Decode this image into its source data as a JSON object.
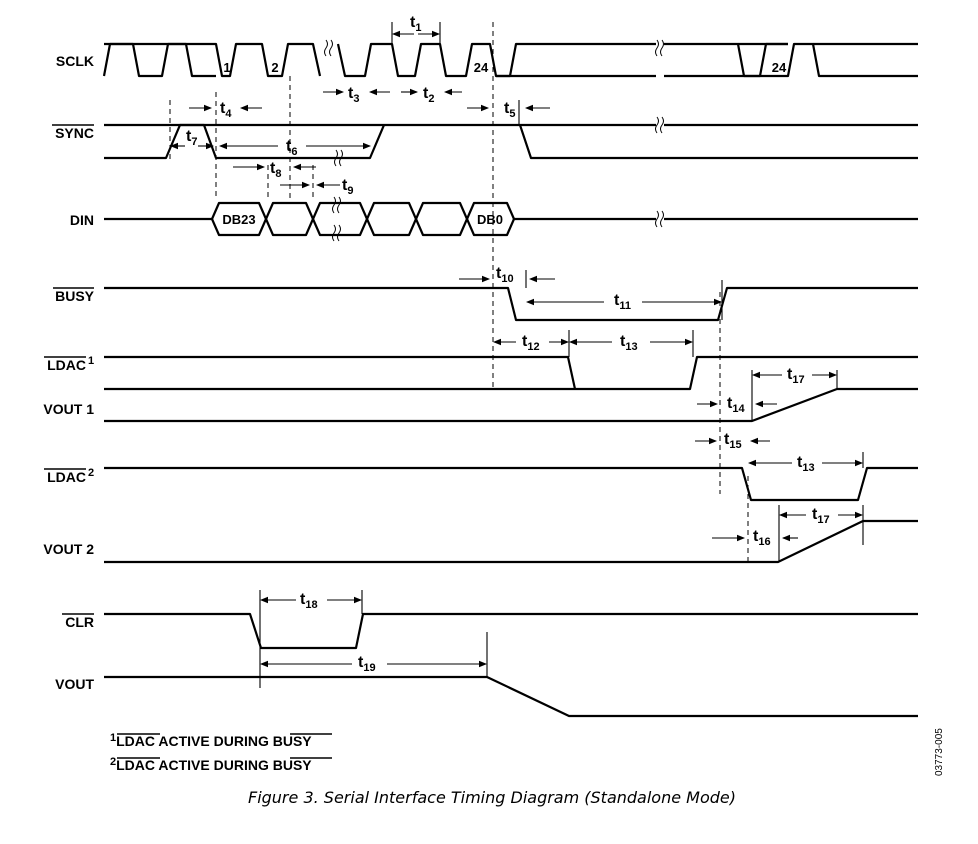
{
  "signals": {
    "sclk": "SCLK",
    "sync": "SYNC",
    "din": "DIN",
    "busy": "BUSY",
    "ldac1": "LDAC",
    "ldac1_note": "1",
    "vout1": "VOUT 1",
    "ldac2": "LDAC",
    "ldac2_note": "2",
    "vout2": "VOUT 2",
    "clr": "CLR",
    "vout": "VOUT"
  },
  "clock_labels": {
    "p1": "1",
    "p2": "2",
    "p24": "24",
    "p24b": "24"
  },
  "data_bits": {
    "first": "DB23",
    "last": "DB0"
  },
  "timing": {
    "t": "t",
    "t1": "1",
    "t2": "2",
    "t3": "3",
    "t4": "4",
    "t5": "5",
    "t6": "6",
    "t7": "7",
    "t8": "8",
    "t9": "9",
    "t10": "10",
    "t11": "11",
    "t12": "12",
    "t13a": "13",
    "t13b": "13",
    "t14": "14",
    "t15": "15",
    "t16": "16",
    "t17a": "17",
    "t17b": "17",
    "t18": "18",
    "t19": "19"
  },
  "footnotes": {
    "n1_num": "1",
    "n1_ldac": "LDAC",
    "n1_mid": " ACTIVE DURING ",
    "n1_busy": "BUSY",
    "n2_num": "2",
    "n2_ldac": "LDAC",
    "n2_mid": " ACTIVE DURING ",
    "n2_busy": "BUSY"
  },
  "figure_code": "03773-005",
  "caption": "Figure 3. Serial Interface Timing Diagram (Standalone Mode)"
}
